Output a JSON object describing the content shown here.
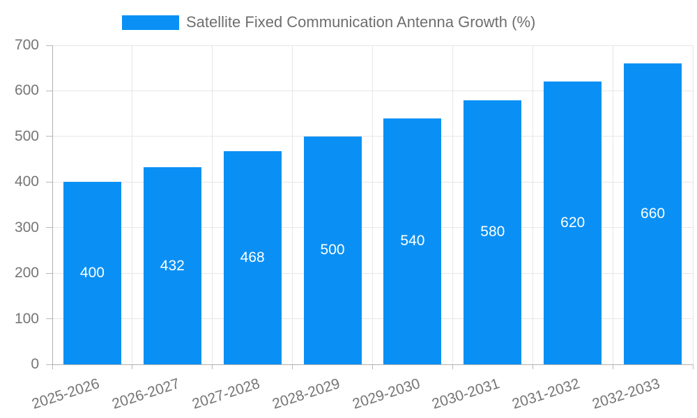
{
  "legend": {
    "label": "Satellite Fixed Communication Antenna Growth (%)"
  },
  "colors": {
    "bar": "#0A90F5",
    "grid": "#e6e6e6",
    "axis_line": "#b0b0b0",
    "tick": "#b9b9b9",
    "axis_text": "#757575",
    "legend_text": "#6e6e6e",
    "bar_label_text": "#ffffff",
    "background": "#ffffff"
  },
  "chart_data": {
    "type": "bar",
    "title": "Satellite Fixed Communication Antenna Growth (%)",
    "categories": [
      "2025-2026",
      "2026-2027",
      "2027-2028",
      "2028-2029",
      "2029-2030",
      "2030-2031",
      "2031-2032",
      "2032-2033"
    ],
    "values": [
      400,
      432,
      468,
      500,
      540,
      580,
      620,
      660
    ],
    "xlabel": "",
    "ylabel": "",
    "ylim": [
      0,
      700
    ],
    "ytick_step": 100,
    "yticks": [
      0,
      100,
      200,
      300,
      400,
      500,
      600,
      700
    ],
    "grid": true,
    "legend_position": "top-center",
    "value_labels": "inside-center",
    "x_label_rotation_deg": -18
  }
}
